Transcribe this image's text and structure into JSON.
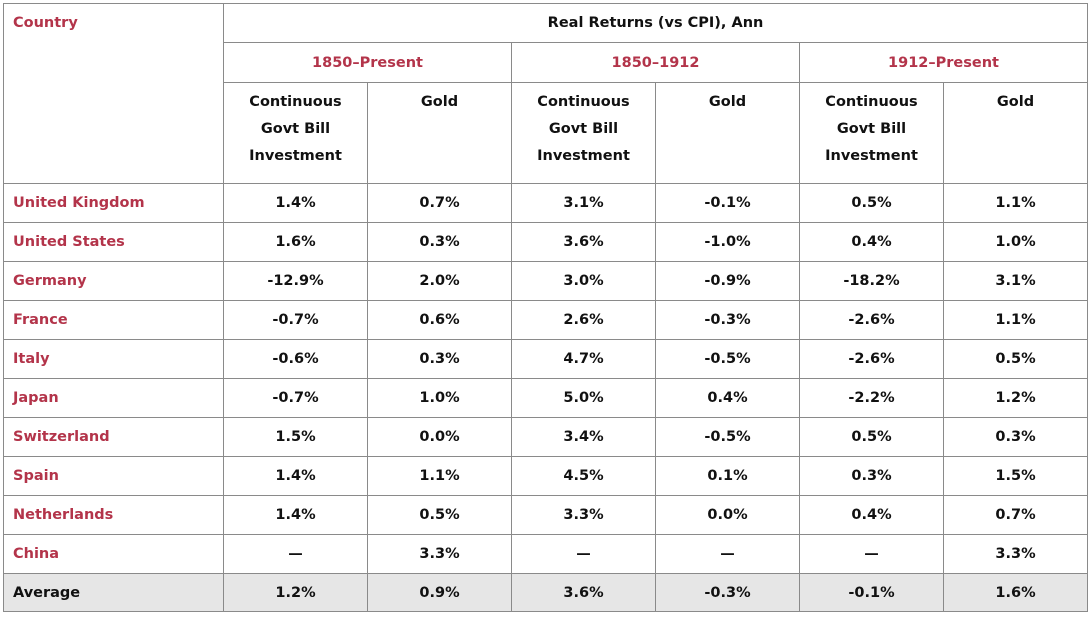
{
  "header": {
    "country_label": "Country",
    "main_title": "Real Returns (vs CPI), Ann",
    "periods": [
      "1850–Present",
      "1850–1912",
      "1912–Present"
    ],
    "sub_cols": {
      "bill": [
        "Continuous",
        "Govt Bill",
        "Investment"
      ],
      "gold": "Gold"
    }
  },
  "rows": [
    {
      "country": "United Kingdom",
      "values": [
        "1.4%",
        "0.7%",
        "3.1%",
        "-0.1%",
        "0.5%",
        "1.1%"
      ]
    },
    {
      "country": "United States",
      "values": [
        "1.6%",
        "0.3%",
        "3.6%",
        "-1.0%",
        "0.4%",
        "1.0%"
      ]
    },
    {
      "country": "Germany",
      "values": [
        "-12.9%",
        "2.0%",
        "3.0%",
        "-0.9%",
        "-18.2%",
        "3.1%"
      ]
    },
    {
      "country": "France",
      "values": [
        "-0.7%",
        "0.6%",
        "2.6%",
        "-0.3%",
        "-2.6%",
        "1.1%"
      ]
    },
    {
      "country": "Italy",
      "values": [
        "-0.6%",
        "0.3%",
        "4.7%",
        "-0.5%",
        "-2.6%",
        "0.5%"
      ]
    },
    {
      "country": "Japan",
      "values": [
        "-0.7%",
        "1.0%",
        "5.0%",
        "0.4%",
        "-2.2%",
        "1.2%"
      ]
    },
    {
      "country": "Switzerland",
      "values": [
        "1.5%",
        "0.0%",
        "3.4%",
        "-0.5%",
        "0.5%",
        "0.3%"
      ]
    },
    {
      "country": "Spain",
      "values": [
        "1.4%",
        "1.1%",
        "4.5%",
        "0.1%",
        "0.3%",
        "1.5%"
      ]
    },
    {
      "country": "Netherlands",
      "values": [
        "1.4%",
        "0.5%",
        "3.3%",
        "0.0%",
        "0.4%",
        "0.7%"
      ]
    },
    {
      "country": "China",
      "values": [
        "—",
        "3.3%",
        "—",
        "—",
        "—",
        "3.3%"
      ]
    }
  ],
  "average": {
    "label": "Average",
    "values": [
      "1.2%",
      "0.9%",
      "3.6%",
      "-0.3%",
      "-0.1%",
      "1.6%"
    ]
  },
  "colors": {
    "accent_red": "#b3344a",
    "average_bg": "#e6e6e6",
    "border": "#8a8a8a"
  }
}
